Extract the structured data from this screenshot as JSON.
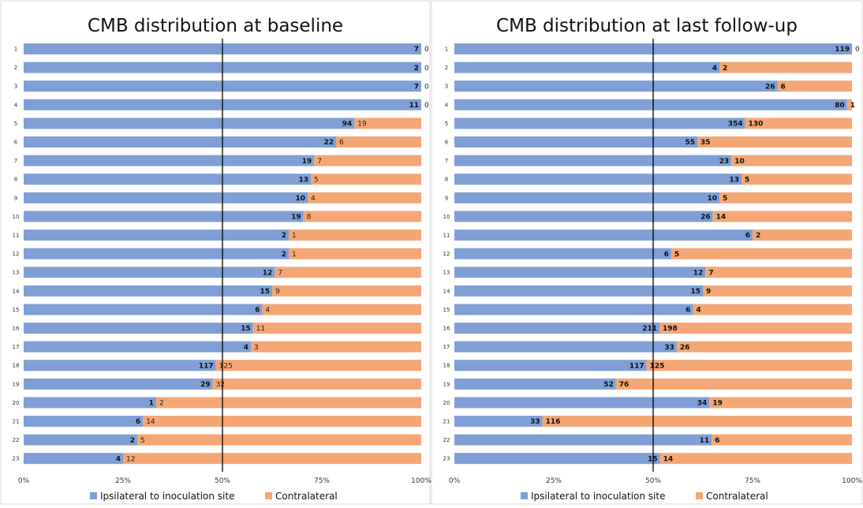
{
  "colors": {
    "ipsilateral": "#7f9fd6",
    "contralateral": "#f4a774",
    "reference_line": "#000000"
  },
  "chart_data": [
    {
      "type": "bar",
      "orientation": "horizontal",
      "stacking": "percent",
      "title": "CMB distribution at baseline",
      "categories": [
        "1",
        "2",
        "3",
        "4",
        "5",
        "6",
        "7",
        "8",
        "9",
        "10",
        "11",
        "12",
        "13",
        "14",
        "15",
        "16",
        "17",
        "18",
        "19",
        "20",
        "21",
        "22",
        "23"
      ],
      "series": [
        {
          "name": "Ipsilateral to inoculation site",
          "values": [
            7,
            2,
            7,
            11,
            94,
            22,
            19,
            13,
            10,
            19,
            2,
            2,
            12,
            15,
            6,
            15,
            4,
            117,
            29,
            1,
            6,
            2,
            4
          ]
        },
        {
          "name": "Contralateral",
          "values": [
            0,
            0,
            0,
            0,
            19,
            6,
            7,
            5,
            4,
            8,
            1,
            1,
            7,
            9,
            4,
            11,
            3,
            125,
            32,
            2,
            14,
            5,
            12
          ]
        }
      ],
      "xticks": [
        "0%",
        "25%",
        "50%",
        "75%",
        "100%"
      ],
      "xlim": [
        0,
        100
      ],
      "reference_line": 50,
      "legend": "bottom",
      "grid": false
    },
    {
      "type": "bar",
      "orientation": "horizontal",
      "stacking": "percent",
      "title": "CMB distribution at last follow-up",
      "categories": [
        "1",
        "2",
        "3",
        "4",
        "5",
        "6",
        "7",
        "8",
        "9",
        "10",
        "11",
        "12",
        "13",
        "14",
        "15",
        "16",
        "17",
        "18",
        "19",
        "20",
        "21",
        "22",
        "23"
      ],
      "series": [
        {
          "name": "Ipsilateral to inoculation site",
          "values": [
            119,
            4,
            26,
            80,
            354,
            55,
            23,
            13,
            10,
            26,
            6,
            6,
            12,
            15,
            6,
            211,
            33,
            117,
            52,
            34,
            33,
            11,
            15
          ]
        },
        {
          "name": "Contralateral",
          "values": [
            0,
            2,
            6,
            1,
            130,
            35,
            10,
            5,
            5,
            14,
            2,
            5,
            7,
            9,
            4,
            198,
            26,
            125,
            76,
            19,
            116,
            6,
            14
          ]
        }
      ],
      "xticks": [
        "0%",
        "25%",
        "50%",
        "75%",
        "100%"
      ],
      "xlim": [
        0,
        100
      ],
      "reference_line": 50,
      "legend": "bottom",
      "grid": false
    }
  ]
}
